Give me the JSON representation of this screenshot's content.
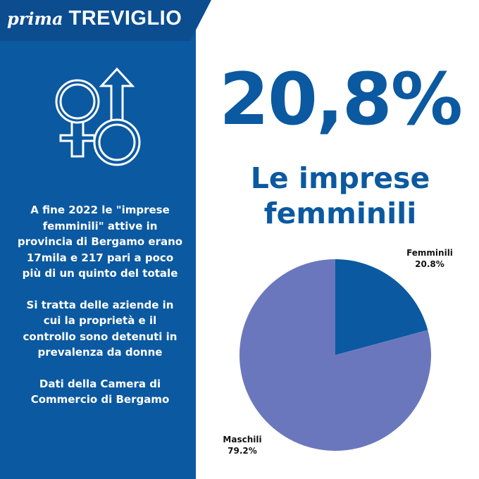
{
  "header": {
    "brand_prefix": "prima",
    "brand_city": "TREVIGLIO"
  },
  "icon": "gender-symbols-icon",
  "headline": {
    "value": "20,8%",
    "subtitle_line1": "Le imprese",
    "subtitle_line2": "femminili"
  },
  "left_text": {
    "paragraph1": "A fine 2022 le \"imprese femminili\" attive in provincia di Bergamo erano 17mila e 217  pari a poco più di un quinto del totale",
    "paragraph2": "Si tratta delle aziende in cui la proprietà e il controllo sono detenuti in prevalenza da donne",
    "paragraph3": "Dati della Camera di Commercio di Bergamo"
  },
  "colors": {
    "brand_blue": "#0b59a0",
    "header_blue": "#0b4d8f",
    "slice_femminili": "#0b59a0",
    "slice_maschili": "#6b77bc"
  },
  "chart_data": {
    "type": "pie",
    "slices": [
      {
        "label": "Femminili",
        "value": 20.8,
        "value_label": "20.8%",
        "color": "#0b59a0"
      },
      {
        "label": "Maschili",
        "value": 79.2,
        "value_label": "79.2%",
        "color": "#6b77bc"
      }
    ],
    "start_angle": "12 o'clock",
    "direction": "clockwise"
  }
}
